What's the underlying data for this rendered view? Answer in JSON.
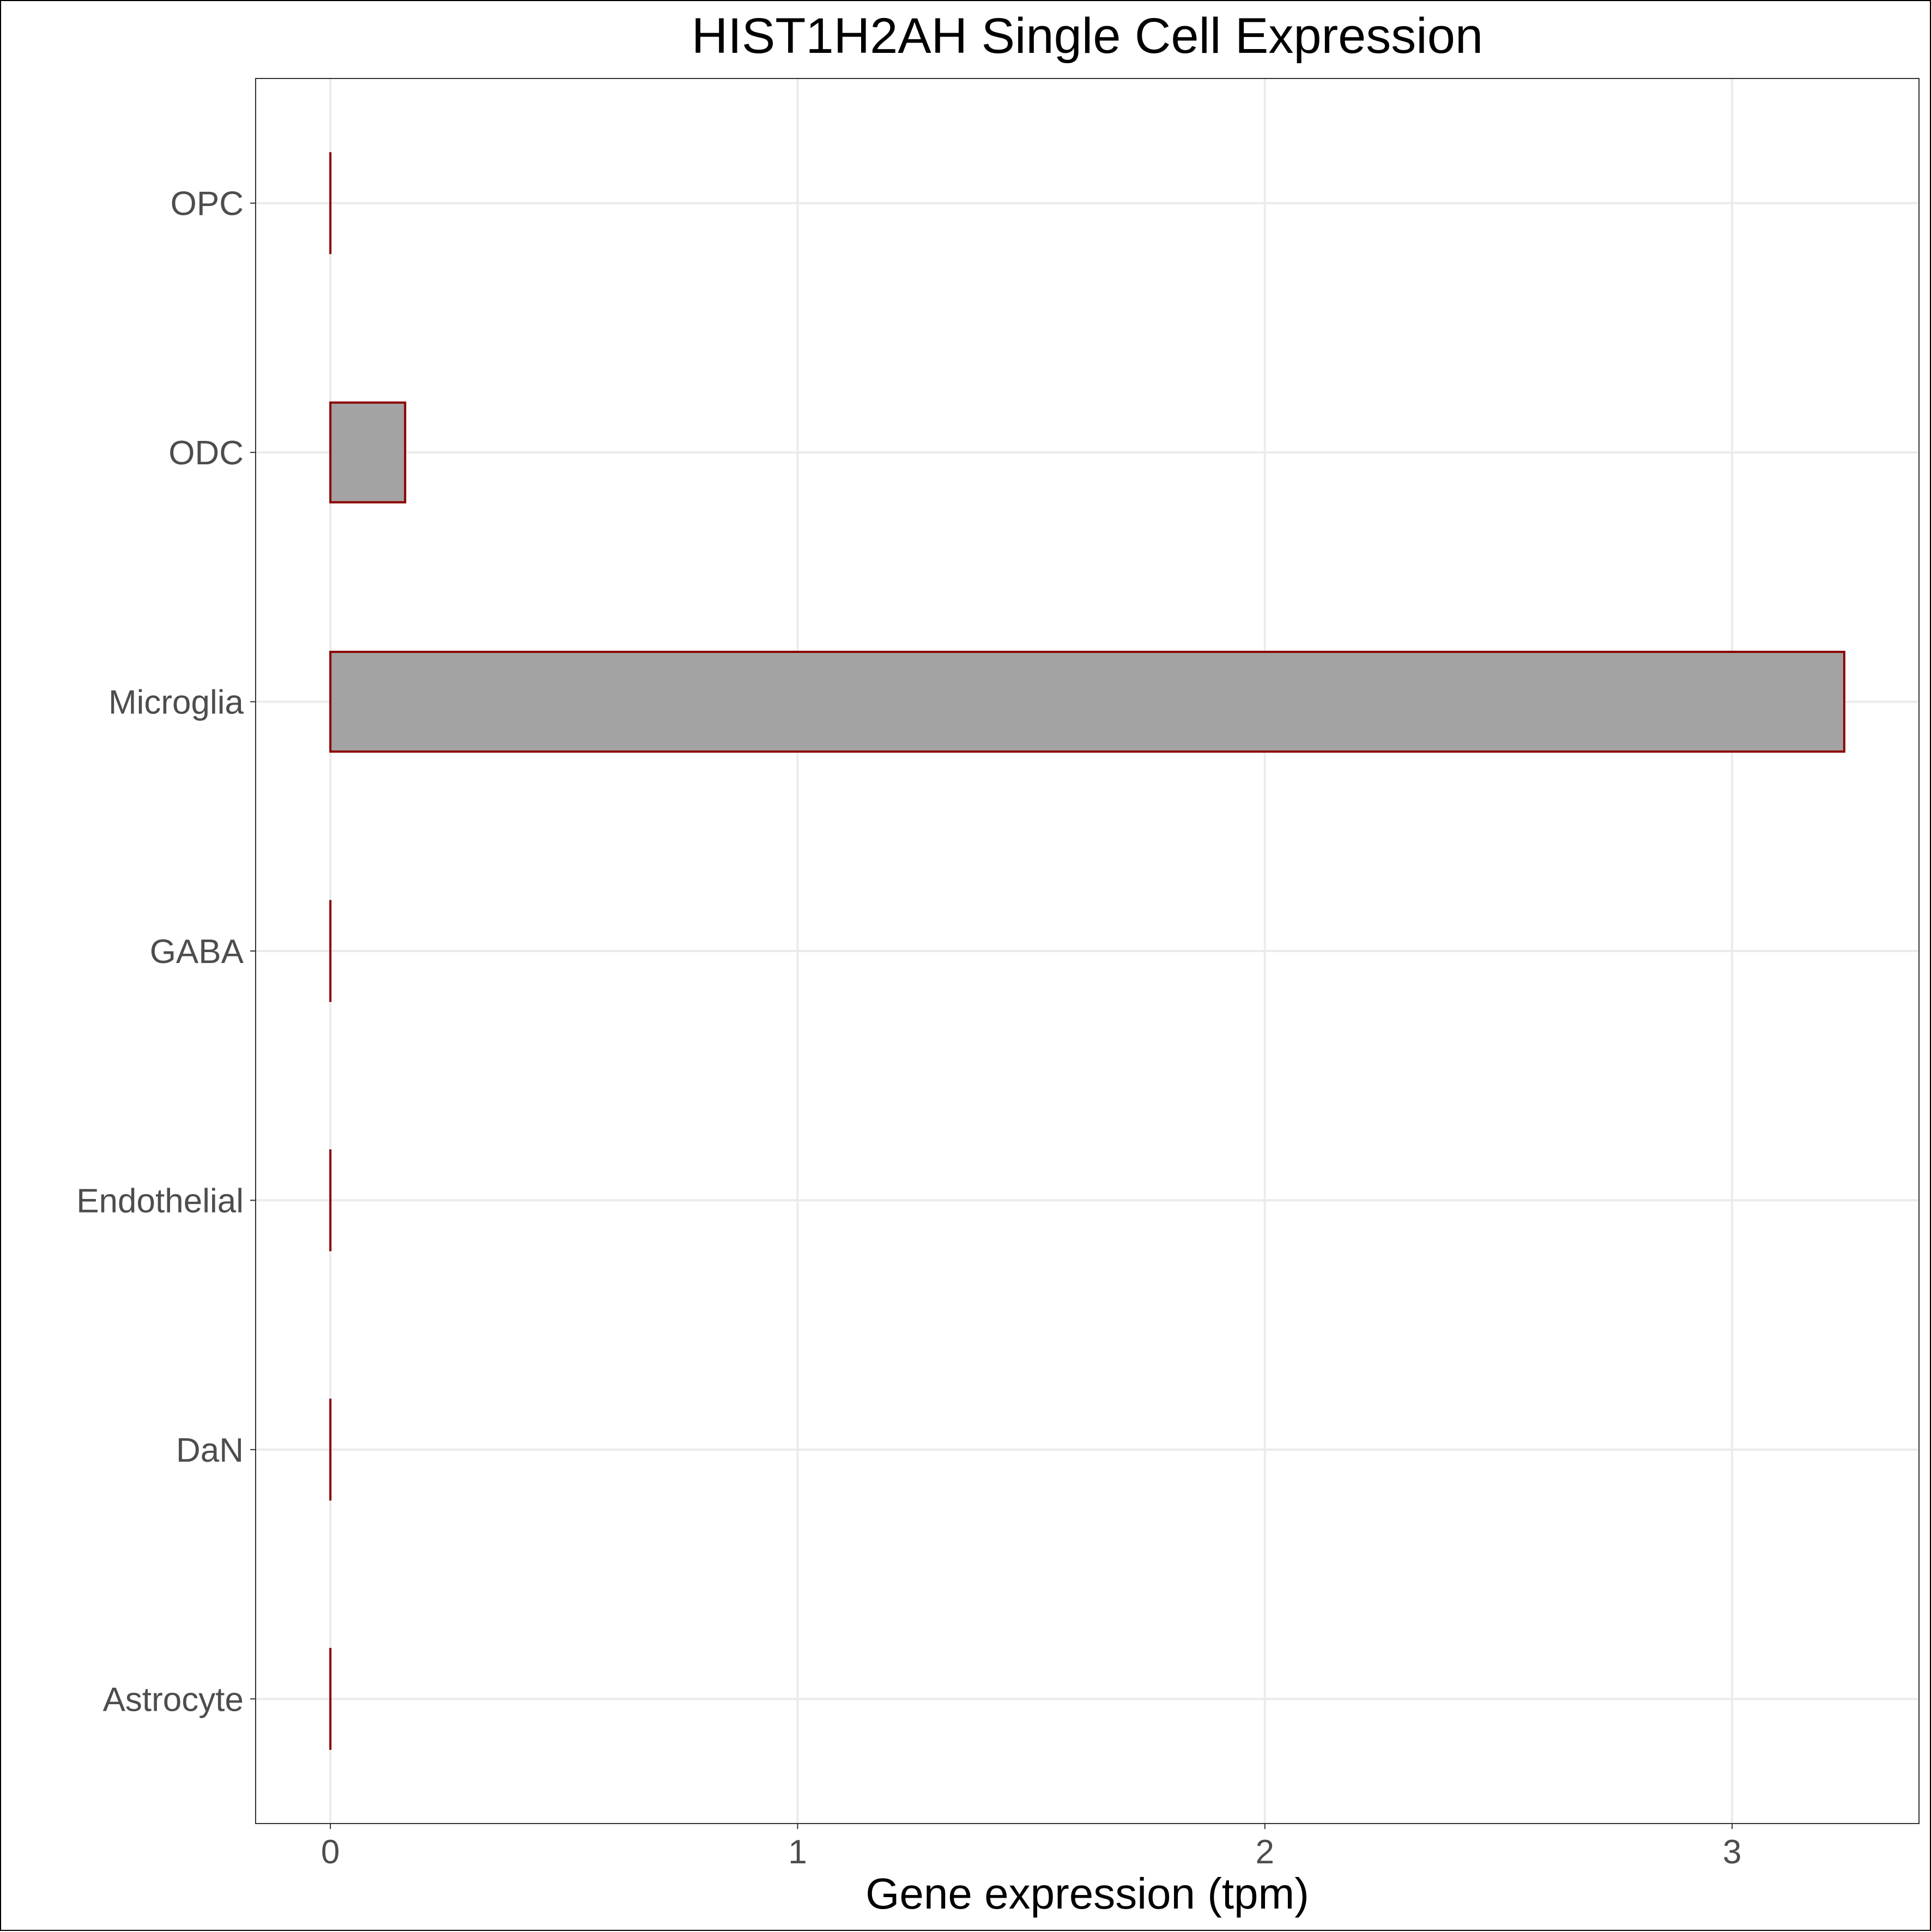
{
  "chart_data": {
    "type": "bar",
    "orientation": "horizontal",
    "title": "HIST1H2AH Single Cell Expression",
    "xlabel": "Gene expression (tpm)",
    "ylabel": "",
    "categories": [
      "Astrocyte",
      "DaN",
      "Endothelial",
      "GABA",
      "Microglia",
      "ODC",
      "OPC"
    ],
    "values": [
      0,
      0,
      0,
      0,
      3.24,
      0.16,
      0
    ],
    "xlim": [
      -0.16,
      3.4
    ],
    "xticks": [
      0,
      1,
      2,
      3
    ],
    "grid": true,
    "bar_fill": "#a3a3a3",
    "bar_stroke": "#8b0000",
    "background": "#ffffff"
  }
}
